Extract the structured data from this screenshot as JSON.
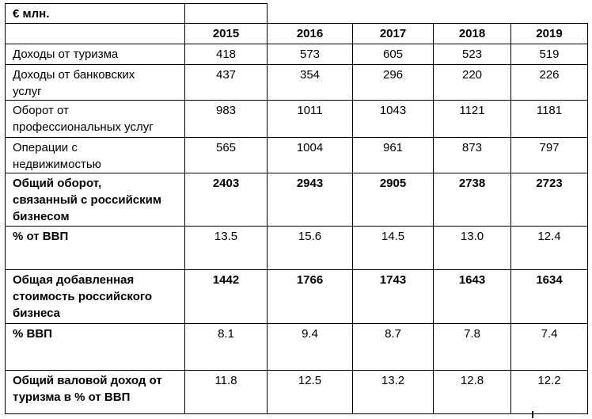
{
  "table": {
    "unit_label": "€ млн.",
    "years": [
      "2015",
      "2016",
      "2017",
      "2018",
      "2019"
    ],
    "rows": [
      {
        "label": "Доходы от туризма",
        "bold_label": false,
        "bold_values": false,
        "values": [
          "418",
          "573",
          "605",
          "523",
          "519"
        ]
      },
      {
        "label": "Доходы от банковских\nуслуг",
        "bold_label": false,
        "bold_values": false,
        "values": [
          "437",
          "354",
          "296",
          "220",
          "226"
        ]
      },
      {
        "label": "Оборот от\nпрофессиональных услуг",
        "bold_label": false,
        "bold_values": false,
        "values": [
          "983",
          "1011",
          "1043",
          "1121",
          "1181"
        ]
      },
      {
        "label": "Операции с\nнедвижимостью",
        "bold_label": false,
        "bold_values": false,
        "values": [
          "565",
          "1004",
          "961",
          "873",
          "797"
        ]
      },
      {
        "label": "Общий оборот,\nсвязанный с российским\nбизнесом",
        "bold_label": true,
        "bold_values": true,
        "values": [
          "2403",
          "2943",
          "2905",
          "2738",
          "2723"
        ]
      },
      {
        "label": "% от ВВП",
        "bold_label": true,
        "bold_values": false,
        "values": [
          "13.5",
          "15.6",
          "14.5",
          "13.0",
          "12.4"
        ]
      },
      {
        "label": "Общая добавленная\nстоимость российского\nбизнеса",
        "bold_label": true,
        "bold_values": true,
        "values": [
          "1442",
          "1766",
          "1743",
          "1643",
          "1634"
        ]
      },
      {
        "label": "% ВВП",
        "bold_label": true,
        "bold_values": false,
        "values": [
          "8.1",
          "9.4",
          "8.7",
          "7.8",
          "7.4"
        ]
      },
      {
        "label": "Общий валовой доход от\nтуризма в % от ВВП",
        "bold_label": true,
        "bold_values": false,
        "values": [
          "11.8",
          "12.5",
          "13.2",
          "12.8",
          "12.2"
        ]
      }
    ]
  },
  "colors": {
    "border": "#000000",
    "text": "#000000",
    "background": "#ffffff"
  }
}
